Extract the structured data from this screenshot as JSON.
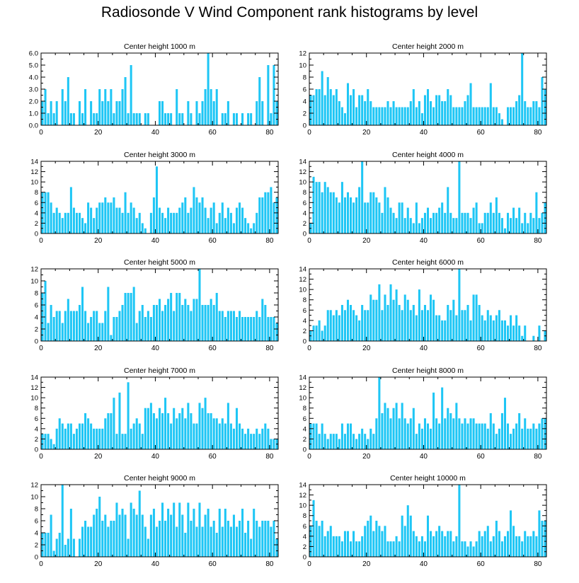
{
  "figure": {
    "title": "Radiosonde V Wind Component rank histograms by level",
    "bar_color": "#1ec6f5"
  },
  "chart_data": [
    {
      "type": "bar",
      "title": "Center height 1000 m",
      "xlim": [
        0,
        83
      ],
      "ylim": [
        0,
        6
      ],
      "xticks": [
        0,
        20,
        40,
        60,
        80
      ],
      "xtick_labels": [
        "0",
        "20",
        "40",
        "60",
        "80"
      ],
      "yticks": [
        0,
        1,
        2,
        3,
        4,
        5,
        6
      ],
      "ytick_labels": [
        "0.0",
        "1.0",
        "2.0",
        "3.0",
        "4.0",
        "5.0",
        "6.0"
      ],
      "values": [
        2,
        3,
        1,
        2,
        1,
        2,
        0,
        3,
        2,
        4,
        1,
        1,
        0,
        2,
        1,
        3,
        0,
        2,
        1,
        1,
        3,
        2,
        3,
        2,
        3,
        1,
        2,
        2,
        3,
        4,
        1,
        5,
        1,
        1,
        1,
        0,
        1,
        1,
        0,
        0,
        0,
        2,
        2,
        1,
        1,
        1,
        0,
        3,
        1,
        1,
        0,
        2,
        1,
        0,
        2,
        1,
        2,
        3,
        6,
        3,
        2,
        3,
        0,
        1,
        1,
        2,
        0,
        1,
        1,
        0,
        1,
        0,
        1,
        1,
        0,
        2,
        4,
        2,
        0,
        5,
        1,
        5,
        2
      ]
    },
    {
      "type": "bar",
      "title": "Center height 2000 m",
      "xlim": [
        0,
        83
      ],
      "ylim": [
        0,
        12
      ],
      "xticks": [
        0,
        20,
        40,
        60,
        80
      ],
      "xtick_labels": [
        "0",
        "20",
        "40",
        "60",
        "80"
      ],
      "yticks": [
        0,
        2,
        4,
        6,
        8,
        10,
        12
      ],
      "ytick_labels": [
        "0",
        "2",
        "4",
        "6",
        "8",
        "10",
        "12"
      ],
      "values": [
        5,
        5,
        6,
        6,
        9,
        5,
        8,
        6,
        5,
        6,
        4,
        3,
        2,
        7,
        5,
        6,
        3,
        5,
        5,
        4,
        6,
        4,
        3,
        3,
        3,
        3,
        3,
        4,
        3,
        4,
        3,
        3,
        3,
        3,
        3,
        4,
        6,
        3,
        4,
        2,
        5,
        6,
        4,
        3,
        5,
        5,
        4,
        4,
        6,
        5,
        3,
        3,
        3,
        3,
        4,
        5,
        7,
        3,
        3,
        3,
        3,
        3,
        3,
        7,
        3,
        3,
        2,
        1,
        0,
        3,
        3,
        3,
        4,
        5,
        12,
        4,
        3,
        3,
        4,
        4,
        3,
        8,
        6
      ]
    },
    {
      "type": "bar",
      "title": "Center height 3000 m",
      "xlim": [
        0,
        83
      ],
      "ylim": [
        0,
        14
      ],
      "xticks": [
        0,
        20,
        40,
        60,
        80
      ],
      "xtick_labels": [
        "0",
        "20",
        "40",
        "60",
        "80"
      ],
      "yticks": [
        0,
        2,
        4,
        6,
        8,
        10,
        12,
        14
      ],
      "ytick_labels": [
        "0",
        "2",
        "4",
        "6",
        "8",
        "10",
        "12",
        "14"
      ],
      "values": [
        8,
        8,
        8,
        6,
        4,
        5,
        4,
        3,
        4,
        4,
        9,
        5,
        4,
        4,
        3,
        2,
        6,
        5,
        3,
        5,
        6,
        6,
        7,
        6,
        6,
        7,
        5,
        5,
        4,
        8,
        4,
        6,
        5,
        3,
        4,
        2,
        1,
        0,
        4,
        7,
        13,
        5,
        4,
        3,
        5,
        4,
        4,
        4,
        5,
        6,
        7,
        4,
        5,
        9,
        7,
        6,
        7,
        5,
        3,
        5,
        6,
        2,
        4,
        6,
        3,
        5,
        4,
        2,
        5,
        6,
        5,
        3,
        2,
        1,
        2,
        4,
        7,
        7,
        8,
        8,
        9,
        6,
        7
      ]
    },
    {
      "type": "bar",
      "title": "Center height 4000 m",
      "xlim": [
        0,
        83
      ],
      "ylim": [
        0,
        14
      ],
      "xticks": [
        0,
        20,
        40,
        60,
        80
      ],
      "xtick_labels": [
        "0",
        "20",
        "40",
        "60",
        "80"
      ],
      "yticks": [
        0,
        2,
        4,
        6,
        8,
        10,
        12,
        14
      ],
      "ytick_labels": [
        "0",
        "2",
        "4",
        "6",
        "8",
        "10",
        "12",
        "14"
      ],
      "values": [
        2,
        11,
        10,
        10,
        8,
        10,
        9,
        8,
        8,
        7,
        6,
        10,
        7,
        8,
        7,
        6,
        7,
        9,
        14,
        6,
        6,
        8,
        8,
        7,
        6,
        4,
        9,
        7,
        5,
        4,
        3,
        6,
        6,
        3,
        5,
        3,
        2,
        6,
        2,
        3,
        4,
        5,
        3,
        4,
        4,
        5,
        6,
        4,
        9,
        4,
        3,
        3,
        14,
        4,
        4,
        4,
        3,
        5,
        6,
        2,
        2,
        4,
        4,
        6,
        4,
        7,
        4,
        3,
        1,
        4,
        3,
        5,
        3,
        5,
        2,
        4,
        2,
        4,
        3,
        8,
        3,
        4,
        6
      ]
    },
    {
      "type": "bar",
      "title": "Center height 5000 m",
      "xlim": [
        0,
        83
      ],
      "ylim": [
        0,
        12
      ],
      "xticks": [
        0,
        20,
        40,
        60,
        80
      ],
      "xtick_labels": [
        "0",
        "20",
        "40",
        "60",
        "80"
      ],
      "yticks": [
        0,
        2,
        4,
        6,
        8,
        10,
        12
      ],
      "ytick_labels": [
        "0",
        "2",
        "4",
        "6",
        "8",
        "10",
        "12"
      ],
      "values": [
        8,
        10,
        3,
        6,
        4,
        5,
        5,
        3,
        5,
        7,
        5,
        5,
        5,
        6,
        9,
        5,
        3,
        4,
        5,
        5,
        3,
        3,
        5,
        9,
        1,
        4,
        4,
        5,
        6,
        8,
        8,
        8,
        9,
        3,
        5,
        6,
        4,
        5,
        4,
        6,
        6,
        7,
        5,
        6,
        7,
        8,
        5,
        8,
        8,
        6,
        7,
        6,
        5,
        7,
        7,
        12,
        6,
        6,
        6,
        7,
        6,
        8,
        5,
        5,
        4,
        5,
        5,
        5,
        4,
        5,
        4,
        4,
        4,
        4,
        4,
        5,
        4,
        7,
        6,
        4,
        4,
        4,
        3
      ]
    },
    {
      "type": "bar",
      "title": "Center height 6000 m",
      "xlim": [
        0,
        83
      ],
      "ylim": [
        0,
        14
      ],
      "xticks": [
        0,
        20,
        40,
        60,
        80
      ],
      "xtick_labels": [
        "0",
        "20",
        "40",
        "60",
        "80"
      ],
      "yticks": [
        0,
        2,
        4,
        6,
        8,
        10,
        12,
        14
      ],
      "ytick_labels": [
        "0",
        "2",
        "4",
        "6",
        "8",
        "10",
        "12",
        "14"
      ],
      "values": [
        2,
        3,
        3,
        4,
        2,
        3,
        6,
        6,
        5,
        6,
        5,
        7,
        6,
        8,
        7,
        6,
        5,
        4,
        7,
        6,
        6,
        9,
        8,
        8,
        11,
        6,
        9,
        7,
        11,
        8,
        10,
        7,
        6,
        9,
        8,
        6,
        7,
        5,
        10,
        6,
        7,
        6,
        9,
        8,
        5,
        5,
        4,
        4,
        7,
        6,
        8,
        5,
        14,
        6,
        6,
        7,
        4,
        9,
        9,
        7,
        5,
        4,
        6,
        5,
        4,
        5,
        6,
        4,
        4,
        3,
        5,
        3,
        5,
        3,
        1,
        3,
        0,
        0,
        1,
        0,
        3,
        0,
        2
      ]
    },
    {
      "type": "bar",
      "title": "Center height 7000 m",
      "xlim": [
        0,
        83
      ],
      "ylim": [
        0,
        14
      ],
      "xticks": [
        0,
        20,
        40,
        60,
        80
      ],
      "xtick_labels": [
        "0",
        "20",
        "40",
        "60",
        "80"
      ],
      "yticks": [
        0,
        2,
        4,
        6,
        8,
        10,
        12,
        14
      ],
      "ytick_labels": [
        "0",
        "2",
        "4",
        "6",
        "8",
        "10",
        "12",
        "14"
      ],
      "values": [
        3,
        3,
        3,
        2,
        1,
        4,
        6,
        5,
        4,
        5,
        5,
        3,
        4,
        5,
        5,
        7,
        6,
        5,
        4,
        4,
        4,
        4,
        6,
        7,
        7,
        10,
        3,
        11,
        3,
        3,
        13,
        4,
        5,
        6,
        5,
        3,
        8,
        8,
        9,
        7,
        6,
        8,
        7,
        10,
        7,
        5,
        8,
        6,
        7,
        8,
        6,
        9,
        7,
        5,
        5,
        9,
        8,
        10,
        7,
        7,
        6,
        6,
        5,
        6,
        5,
        9,
        5,
        4,
        8,
        5,
        4,
        3,
        4,
        3,
        3,
        4,
        3,
        4,
        5,
        4,
        2,
        2,
        2
      ]
    },
    {
      "type": "bar",
      "title": "Center height 8000 m",
      "xlim": [
        0,
        83
      ],
      "ylim": [
        0,
        14
      ],
      "xticks": [
        0,
        20,
        40,
        60,
        80
      ],
      "xtick_labels": [
        "0",
        "20",
        "40",
        "60",
        "80"
      ],
      "yticks": [
        0,
        2,
        4,
        6,
        8,
        10,
        12,
        14
      ],
      "ytick_labels": [
        "0",
        "2",
        "4",
        "6",
        "8",
        "10",
        "12",
        "14"
      ],
      "values": [
        5,
        5,
        5,
        3,
        5,
        3,
        2,
        3,
        3,
        3,
        2,
        5,
        3,
        5,
        5,
        3,
        2,
        3,
        4,
        3,
        2,
        4,
        3,
        6,
        14,
        7,
        9,
        8,
        6,
        8,
        9,
        6,
        9,
        6,
        5,
        6,
        8,
        3,
        5,
        4,
        6,
        5,
        4,
        11,
        6,
        5,
        12,
        6,
        8,
        7,
        6,
        9,
        6,
        5,
        6,
        5,
        6,
        6,
        5,
        5,
        5,
        5,
        4,
        7,
        5,
        3,
        4,
        7,
        10,
        5,
        3,
        4,
        5,
        7,
        4,
        6,
        4,
        4,
        5,
        4,
        5,
        6,
        6
      ]
    },
    {
      "type": "bar",
      "title": "Center height 9000 m",
      "xlim": [
        0,
        83
      ],
      "ylim": [
        0,
        12
      ],
      "xticks": [
        0,
        20,
        40,
        60,
        80
      ],
      "xtick_labels": [
        "0",
        "20",
        "40",
        "60",
        "80"
      ],
      "yticks": [
        0,
        2,
        4,
        6,
        8,
        10,
        12
      ],
      "ytick_labels": [
        "0",
        "2",
        "4",
        "6",
        "8",
        "10",
        "12"
      ],
      "values": [
        4,
        4,
        4,
        7,
        1,
        3,
        4,
        12,
        2,
        3,
        8,
        3,
        0,
        3,
        5,
        6,
        5,
        5,
        7,
        8,
        10,
        6,
        7,
        5,
        6,
        6,
        9,
        7,
        8,
        7,
        3,
        9,
        8,
        7,
        11,
        7,
        5,
        3,
        7,
        8,
        5,
        6,
        9,
        6,
        8,
        7,
        9,
        5,
        9,
        7,
        4,
        9,
        6,
        8,
        5,
        9,
        5,
        7,
        8,
        5,
        6,
        4,
        8,
        5,
        8,
        6,
        5,
        7,
        5,
        6,
        8,
        4,
        6,
        3,
        8,
        6,
        5,
        6,
        6,
        6,
        5,
        6,
        3
      ]
    },
    {
      "type": "bar",
      "title": "Center height 10000 m",
      "xlim": [
        0,
        83
      ],
      "ylim": [
        0,
        14
      ],
      "xticks": [
        0,
        20,
        40,
        60,
        80
      ],
      "xtick_labels": [
        "0",
        "20",
        "40",
        "60",
        "80"
      ],
      "yticks": [
        0,
        2,
        4,
        6,
        8,
        10,
        12,
        14
      ],
      "ytick_labels": [
        "0",
        "2",
        "4",
        "6",
        "8",
        "10",
        "12",
        "14"
      ],
      "values": [
        6,
        11,
        7,
        6,
        7,
        4,
        5,
        6,
        4,
        4,
        4,
        3,
        5,
        5,
        3,
        5,
        3,
        3,
        4,
        6,
        7,
        8,
        5,
        7,
        6,
        5,
        6,
        3,
        3,
        3,
        4,
        3,
        8,
        6,
        10,
        8,
        5,
        4,
        3,
        4,
        3,
        8,
        5,
        4,
        5,
        6,
        5,
        4,
        5,
        5,
        3,
        4,
        14,
        3,
        3,
        2,
        3,
        2,
        3,
        5,
        4,
        5,
        6,
        3,
        4,
        7,
        5,
        3,
        4,
        5,
        9,
        6,
        4,
        4,
        3,
        5,
        4,
        4,
        5,
        4,
        9,
        7,
        7
      ]
    }
  ]
}
